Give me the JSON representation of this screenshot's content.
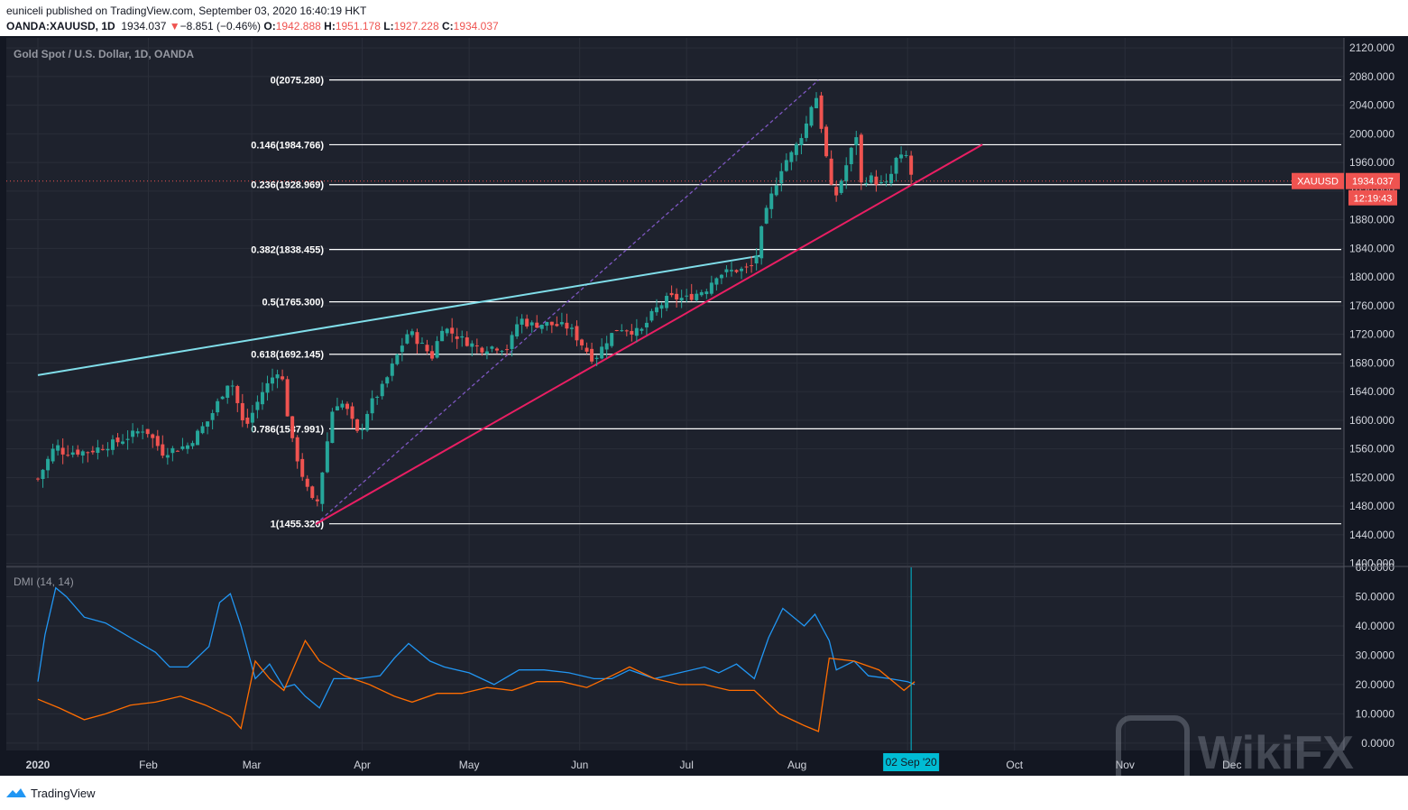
{
  "header": {
    "publisher_line": "euniceli published on TradingView.com, September 03, 2020 16:40:19 HKT",
    "symbol": "OANDA:XAUUSD, 1D",
    "last": "1934.037",
    "change_arrow": "▼",
    "change": "−8.851 (−0.46%)",
    "o_label": "O:",
    "o_value": "1942.888",
    "h_label": "H:",
    "h_value": "1951.178",
    "l_label": "L:",
    "l_value": "1927.228",
    "c_label": "C:",
    "c_value": "1934.037"
  },
  "main_pane": {
    "title": "Gold Spot / U.S. Dollar, 1D, OANDA"
  },
  "dmi_pane": {
    "title": "DMI (14, 14)"
  },
  "price_tag": {
    "symbol": "XAUUSD",
    "value": "1934.037",
    "countdown": "12:19:43"
  },
  "crosshair_date": "02 Sep '20",
  "footer": {
    "brand": "TradingView"
  },
  "watermark": "WikiFX",
  "colors": {
    "background": "#131722",
    "grid": "#2a2e39",
    "up": "#26a69a",
    "down": "#ef5350",
    "trendline_red": "#e91e63",
    "trendline_cyan": "#80deea",
    "fib_diagonal": "#7e57c2",
    "plus_di": "#2196f3",
    "minus_di": "#ff6d00",
    "crosshair": "#00bcd4"
  },
  "chart_data": [
    {
      "type": "candlestick",
      "title": "Gold Spot / U.S. Dollar, 1D, OANDA",
      "x_ticks": [
        "2020",
        "Feb",
        "Mar",
        "Apr",
        "May",
        "Jun",
        "Jul",
        "Aug",
        "Sep",
        "Oct",
        "Nov",
        "Dec"
      ],
      "y_ticks": [
        "2120.000",
        "2080.000",
        "2040.000",
        "2000.000",
        "1960.000",
        "1920.000",
        "1880.000",
        "1840.000",
        "1800.000",
        "1760.000",
        "1720.000",
        "1680.000",
        "1640.000",
        "1600.000",
        "1560.000",
        "1520.000",
        "1480.000",
        "1440.000",
        "1400.000"
      ],
      "ylim": [
        1397,
        2134
      ],
      "fibonacci_levels": [
        {
          "label": "0(2075.280)",
          "value": 2075.28
        },
        {
          "label": "0.146(1984.766)",
          "value": 1984.766
        },
        {
          "label": "0.236(1928.969)",
          "value": 1928.969
        },
        {
          "label": "0.382(1838.455)",
          "value": 1838.455
        },
        {
          "label": "0.5(1765.300)",
          "value": 1765.3
        },
        {
          "label": "0.618(1692.145)",
          "value": 1692.145
        },
        {
          "label": "0.786(1587.991)",
          "value": 1587.991
        },
        {
          "label": "1(1455.320)",
          "value": 1455.32
        }
      ],
      "last_price": 1934.037,
      "close_path": [
        [
          "2020-01-01",
          1518
        ],
        [
          "2020-01-06",
          1566
        ],
        [
          "2020-01-08",
          1556
        ],
        [
          "2020-01-15",
          1556
        ],
        [
          "2020-01-24",
          1571
        ],
        [
          "2020-01-31",
          1589
        ],
        [
          "2020-02-05",
          1555
        ],
        [
          "2020-02-12",
          1565
        ],
        [
          "2020-02-18",
          1601
        ],
        [
          "2020-02-20",
          1620
        ],
        [
          "2020-02-24",
          1660
        ],
        [
          "2020-02-28",
          1587
        ],
        [
          "2020-03-04",
          1640
        ],
        [
          "2020-03-09",
          1675
        ],
        [
          "2020-03-12",
          1576
        ],
        [
          "2020-03-16",
          1510
        ],
        [
          "2020-03-19",
          1475
        ],
        [
          "2020-03-24",
          1625
        ],
        [
          "2020-03-27",
          1622
        ],
        [
          "2020-03-31",
          1577
        ],
        [
          "2020-04-03",
          1620
        ],
        [
          "2020-04-07",
          1648
        ],
        [
          "2020-04-10",
          1682
        ],
        [
          "2020-04-14",
          1725
        ],
        [
          "2020-04-21",
          1687
        ],
        [
          "2020-04-23",
          1732
        ],
        [
          "2020-04-29",
          1713
        ],
        [
          "2020-05-04",
          1700
        ],
        [
          "2020-05-08",
          1703
        ],
        [
          "2020-05-12",
          1700
        ],
        [
          "2020-05-15",
          1743
        ],
        [
          "2020-05-18",
          1733
        ],
        [
          "2020-05-22",
          1735
        ],
        [
          "2020-05-29",
          1730
        ],
        [
          "2020-06-05",
          1684
        ],
        [
          "2020-06-09",
          1715
        ],
        [
          "2020-06-12",
          1730
        ],
        [
          "2020-06-18",
          1722
        ],
        [
          "2020-06-22",
          1753
        ],
        [
          "2020-06-26",
          1771
        ],
        [
          "2020-07-01",
          1770
        ],
        [
          "2020-07-07",
          1785
        ],
        [
          "2020-07-09",
          1803
        ],
        [
          "2020-07-15",
          1810
        ],
        [
          "2020-07-17",
          1810
        ],
        [
          "2020-07-20",
          1817
        ],
        [
          "2020-07-22",
          1865
        ],
        [
          "2020-07-24",
          1902
        ],
        [
          "2020-07-28",
          1958
        ],
        [
          "2020-07-31",
          1975
        ],
        [
          "2020-08-04",
          2018
        ],
        [
          "2020-08-06",
          2062
        ],
        [
          "2020-08-07",
          2035
        ],
        [
          "2020-08-11",
          1911
        ],
        [
          "2020-08-12",
          1915
        ],
        [
          "2020-08-14",
          1944
        ],
        [
          "2020-08-18",
          2004
        ],
        [
          "2020-08-19",
          1930
        ],
        [
          "2020-08-21",
          1940
        ],
        [
          "2020-08-25",
          1928
        ],
        [
          "2020-08-27",
          1930
        ],
        [
          "2020-08-28",
          1963
        ],
        [
          "2020-08-31",
          1967
        ],
        [
          "2020-09-01",
          1970
        ],
        [
          "2020-09-02",
          1943
        ],
        [
          "2020-09-03",
          1934
        ]
      ],
      "drawings": {
        "ascending_support": {
          "from": [
            "2020-03-19",
            1455
          ],
          "to": [
            "2020-09-22",
            1985
          ]
        },
        "upper_trendline": {
          "from": [
            "2020-01-01",
            1663
          ],
          "to": [
            "2020-07-22",
            1830
          ]
        },
        "fib_anchor_line": {
          "from": [
            "2020-03-19",
            1455
          ],
          "to": [
            "2020-08-07",
            2075
          ]
        }
      }
    },
    {
      "type": "line",
      "title": "DMI (14, 14)",
      "y_ticks": [
        "60.0000",
        "50.0000",
        "40.0000",
        "30.0000",
        "20.0000",
        "10.0000",
        "0.0000"
      ],
      "ylim": [
        -2.5,
        60
      ],
      "series": [
        {
          "name": "",
          "color": "#2196f3",
          "points": [
            [
              "2020-01-01",
              21
            ],
            [
              "2020-01-03",
              37
            ],
            [
              "2020-01-06",
              53
            ],
            [
              "2020-01-09",
              50
            ],
            [
              "2020-01-14",
              43
            ],
            [
              "2020-01-20",
              41
            ],
            [
              "2020-01-27",
              36
            ],
            [
              "2020-02-03",
              31
            ],
            [
              "2020-02-07",
              26
            ],
            [
              "2020-02-12",
              26
            ],
            [
              "2020-02-18",
              33
            ],
            [
              "2020-02-21",
              48
            ],
            [
              "2020-02-24",
              51
            ],
            [
              "2020-02-27",
              40
            ],
            [
              "2020-03-02",
              22
            ],
            [
              "2020-03-06",
              27
            ],
            [
              "2020-03-10",
              19
            ],
            [
              "2020-03-13",
              20
            ],
            [
              "2020-03-16",
              16
            ],
            [
              "2020-03-20",
              12
            ],
            [
              "2020-03-24",
              22
            ],
            [
              "2020-03-31",
              22
            ],
            [
              "2020-04-06",
              23
            ],
            [
              "2020-04-10",
              29
            ],
            [
              "2020-04-14",
              34
            ],
            [
              "2020-04-20",
              28
            ],
            [
              "2020-04-24",
              26
            ],
            [
              "2020-05-01",
              24
            ],
            [
              "2020-05-08",
              20
            ],
            [
              "2020-05-15",
              25
            ],
            [
              "2020-05-22",
              25
            ],
            [
              "2020-05-29",
              24
            ],
            [
              "2020-06-05",
              22
            ],
            [
              "2020-06-10",
              22
            ],
            [
              "2020-06-15",
              25
            ],
            [
              "2020-06-22",
              22
            ],
            [
              "2020-06-29",
              24
            ],
            [
              "2020-07-06",
              26
            ],
            [
              "2020-07-10",
              24
            ],
            [
              "2020-07-15",
              27
            ],
            [
              "2020-07-20",
              22
            ],
            [
              "2020-07-24",
              36
            ],
            [
              "2020-07-28",
              46
            ],
            [
              "2020-08-03",
              40
            ],
            [
              "2020-08-06",
              44
            ],
            [
              "2020-08-10",
              35
            ],
            [
              "2020-08-12",
              25
            ],
            [
              "2020-08-17",
              28
            ],
            [
              "2020-08-21",
              23
            ],
            [
              "2020-08-27",
              22
            ],
            [
              "2020-09-01",
              21
            ],
            [
              "2020-09-03",
              20
            ]
          ]
        },
        {
          "name": "",
          "color": "#ff6d00",
          "points": [
            [
              "2020-01-01",
              15
            ],
            [
              "2020-01-07",
              12
            ],
            [
              "2020-01-14",
              8
            ],
            [
              "2020-01-20",
              10
            ],
            [
              "2020-01-27",
              13
            ],
            [
              "2020-02-03",
              14
            ],
            [
              "2020-02-10",
              16
            ],
            [
              "2020-02-17",
              13
            ],
            [
              "2020-02-24",
              9
            ],
            [
              "2020-02-27",
              5
            ],
            [
              "2020-03-02",
              28
            ],
            [
              "2020-03-06",
              22
            ],
            [
              "2020-03-10",
              18
            ],
            [
              "2020-03-16",
              35
            ],
            [
              "2020-03-20",
              28
            ],
            [
              "2020-03-27",
              23
            ],
            [
              "2020-04-03",
              20
            ],
            [
              "2020-04-10",
              16
            ],
            [
              "2020-04-15",
              14
            ],
            [
              "2020-04-22",
              17
            ],
            [
              "2020-04-29",
              17
            ],
            [
              "2020-05-06",
              19
            ],
            [
              "2020-05-13",
              18
            ],
            [
              "2020-05-20",
              21
            ],
            [
              "2020-05-27",
              21
            ],
            [
              "2020-06-03",
              19
            ],
            [
              "2020-06-10",
              23
            ],
            [
              "2020-06-15",
              26
            ],
            [
              "2020-06-22",
              22
            ],
            [
              "2020-06-29",
              20
            ],
            [
              "2020-07-06",
              20
            ],
            [
              "2020-07-13",
              18
            ],
            [
              "2020-07-20",
              18
            ],
            [
              "2020-07-27",
              10
            ],
            [
              "2020-08-03",
              6
            ],
            [
              "2020-08-07",
              4
            ],
            [
              "2020-08-10",
              29
            ],
            [
              "2020-08-17",
              28
            ],
            [
              "2020-08-24",
              25
            ],
            [
              "2020-08-31",
              18
            ],
            [
              "2020-09-03",
              21
            ]
          ]
        }
      ]
    }
  ]
}
